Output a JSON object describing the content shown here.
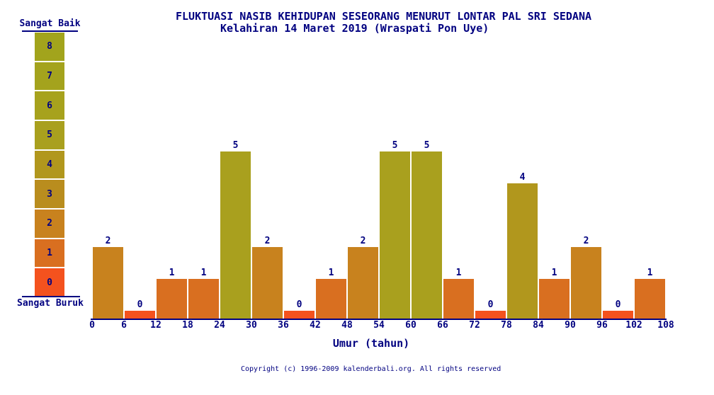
{
  "chart_data": {
    "type": "bar",
    "title": "FLUKTUASI NASIB KEHIDUPAN SESEORANG MENURUT LONTAR PAL SRI SEDANA",
    "subtitle": "Kelahiran 14 Maret 2019 (Wraspati Pon Uye)",
    "xlabel": "Umur (tahun)",
    "bin_width": 6,
    "bin_starts": [
      0,
      6,
      12,
      18,
      24,
      30,
      36,
      42,
      48,
      54,
      60,
      66,
      72,
      78,
      84,
      90,
      96,
      102
    ],
    "values": [
      2,
      0,
      1,
      1,
      5,
      2,
      0,
      1,
      2,
      5,
      5,
      1,
      0,
      4,
      1,
      2,
      0,
      1
    ],
    "xticks": [
      0,
      6,
      12,
      18,
      24,
      30,
      36,
      42,
      48,
      54,
      60,
      66,
      72,
      78,
      84,
      90,
      96,
      102,
      108
    ],
    "ylim": [
      0,
      8
    ],
    "grid": false,
    "legend_position": "left"
  },
  "legend": {
    "top_label": "Sangat Baik",
    "bottom_label": "Sangat Buruk",
    "values": [
      8,
      7,
      6,
      5,
      4,
      3,
      2,
      1,
      0
    ]
  },
  "colors": {
    "text": "#000080",
    "background": "#ffffff",
    "value_colors": {
      "0": "#f4521e",
      "1": "#d96f20",
      "2": "#c8821e",
      "3": "#b98d1e",
      "4": "#b1971d",
      "5": "#a9a01e",
      "6": "#a7a21d",
      "7": "#a4a31d",
      "8": "#a2a41c"
    }
  },
  "footer": {
    "copyright": "Copyright (c) 1996-2009 kalenderbali.org. All rights reserved"
  }
}
